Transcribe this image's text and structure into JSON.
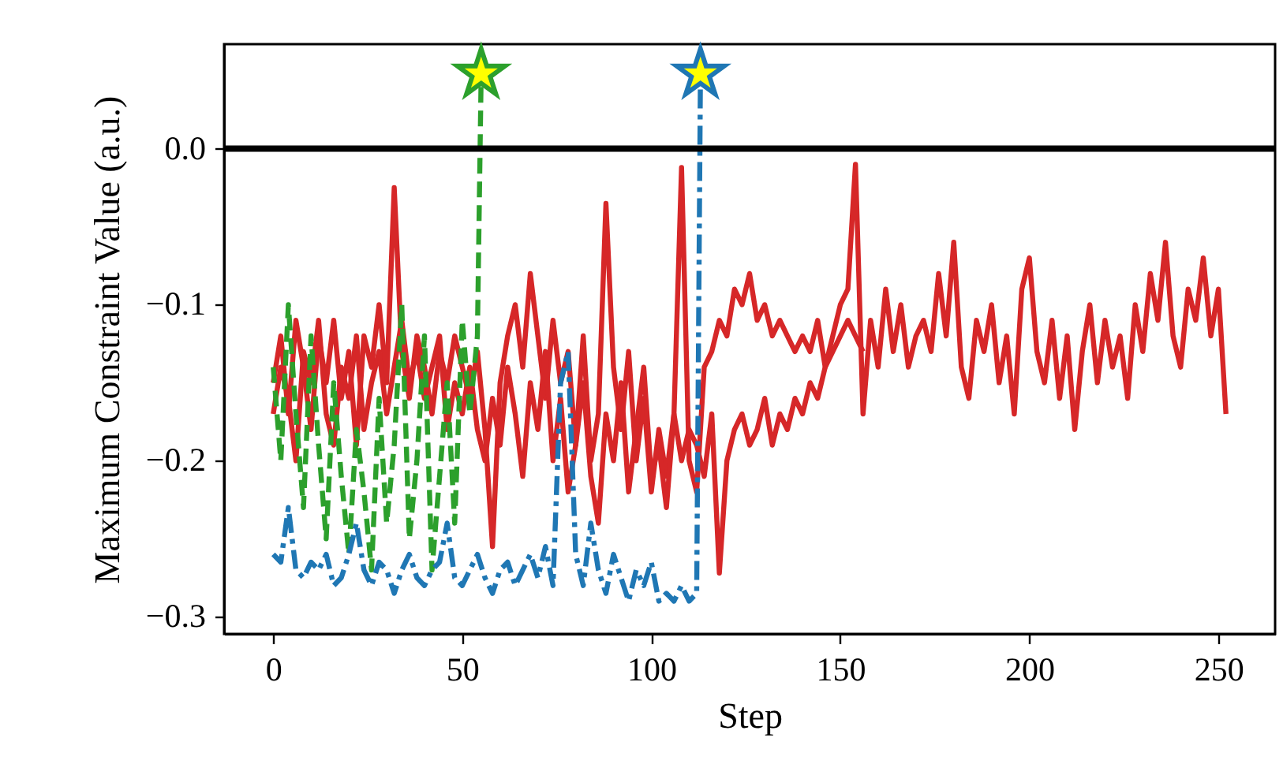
{
  "chart_data": {
    "type": "line",
    "xlabel": "Step",
    "ylabel": "Maximum Constraint Value (a.u.)",
    "xlim": [
      -13,
      265
    ],
    "xticks": [
      0,
      50,
      100,
      150,
      200,
      250
    ],
    "ylim": [
      -0.311,
      0.067
    ],
    "yticks": [
      {
        "value": -0.3,
        "label": "−0.3"
      },
      {
        "value": -0.2,
        "label": "−0.2"
      },
      {
        "value": -0.1,
        "label": "−0.1"
      },
      {
        "value": 0,
        "label": "0.0"
      }
    ],
    "grid": false,
    "ref_lines": [
      {
        "axis": "y",
        "value": 0,
        "color": "#000000"
      }
    ],
    "series": [
      {
        "color": "#d62728",
        "line_style": "solid",
        "x": [
          0,
          2,
          4,
          6,
          8,
          10,
          12,
          14,
          16,
          18,
          20,
          22,
          24,
          26,
          28,
          30,
          32,
          34,
          36,
          38,
          40,
          42,
          44,
          46,
          48,
          50,
          52,
          54,
          56,
          58,
          60,
          62,
          64,
          66,
          68,
          70,
          72,
          74,
          76,
          78,
          80,
          82,
          84,
          86,
          88,
          90,
          92,
          94,
          96,
          98,
          100,
          102,
          104,
          106,
          108,
          110,
          112,
          114,
          116,
          118,
          120,
          122,
          124,
          126,
          128,
          130,
          132,
          134,
          136,
          138,
          140,
          142,
          144,
          146,
          148,
          150,
          152,
          154,
          156,
          158,
          160,
          162,
          164,
          166,
          168,
          170,
          172,
          174,
          176,
          178,
          180,
          182,
          184,
          186,
          188,
          190,
          192,
          194,
          196,
          198,
          200,
          202,
          204,
          206,
          208,
          210,
          212,
          214,
          216,
          218,
          220,
          222,
          224,
          226,
          228,
          230,
          232,
          234,
          236,
          238,
          240,
          242,
          244,
          246,
          248,
          250,
          252
        ],
        "values": [
          -0.15,
          -0.12,
          -0.17,
          -0.11,
          -0.14,
          -0.18,
          -0.12,
          -0.15,
          -0.11,
          -0.16,
          -0.13,
          -0.19,
          -0.12,
          -0.14,
          -0.1,
          -0.15,
          -0.025,
          -0.13,
          -0.16,
          -0.12,
          -0.14,
          -0.17,
          -0.13,
          -0.15,
          -0.12,
          -0.14,
          -0.16,
          -0.13,
          -0.18,
          -0.255,
          -0.15,
          -0.12,
          -0.1,
          -0.14,
          -0.08,
          -0.12,
          -0.16,
          -0.11,
          -0.15,
          -0.13,
          -0.19,
          -0.12,
          -0.2,
          -0.17,
          -0.035,
          -0.14,
          -0.18,
          -0.13,
          -0.2,
          -0.16,
          -0.22,
          -0.18,
          -0.21,
          -0.17,
          -0.012,
          -0.2,
          -0.22,
          -0.14,
          -0.13,
          -0.11,
          -0.12,
          -0.09,
          -0.1,
          -0.08,
          -0.11,
          -0.1,
          -0.12,
          -0.11,
          -0.12,
          -0.13,
          -0.12,
          -0.13,
          -0.11,
          -0.14,
          -0.12,
          -0.1,
          -0.09,
          -0.01,
          -0.17,
          -0.11,
          -0.14,
          -0.09,
          -0.13,
          -0.1,
          -0.14,
          -0.12,
          -0.11,
          -0.13,
          -0.08,
          -0.12,
          -0.06,
          -0.14,
          -0.16,
          -0.11,
          -0.13,
          -0.1,
          -0.15,
          -0.12,
          -0.17,
          -0.09,
          -0.07,
          -0.13,
          -0.15,
          -0.11,
          -0.16,
          -0.12,
          -0.18,
          -0.13,
          -0.1,
          -0.15,
          -0.11,
          -0.14,
          -0.12,
          -0.16,
          -0.1,
          -0.13,
          -0.08,
          -0.11,
          -0.06,
          -0.12,
          -0.14,
          -0.09,
          -0.11,
          -0.07,
          -0.12,
          -0.09,
          -0.17
        ]
      },
      {
        "color": "#d62728",
        "line_style": "solid",
        "x": [
          0,
          2,
          4,
          6,
          8,
          10,
          12,
          14,
          16,
          18,
          20,
          22,
          24,
          26,
          28,
          30,
          32,
          34,
          36,
          38,
          40,
          42,
          44,
          46,
          48,
          50,
          52,
          54,
          56,
          58,
          60,
          62,
          64,
          66,
          68,
          70,
          72,
          74,
          76,
          78,
          80,
          82,
          84,
          86,
          88,
          90,
          92,
          94,
          96,
          98,
          100,
          102,
          104,
          106,
          108,
          110,
          112,
          114,
          116,
          118,
          120,
          122,
          124,
          126,
          128,
          130,
          132,
          134,
          136,
          138,
          140,
          142,
          144,
          146,
          148,
          150,
          152,
          154,
          156
        ],
        "values": [
          -0.17,
          -0.14,
          -0.16,
          -0.2,
          -0.13,
          -0.15,
          -0.11,
          -0.17,
          -0.19,
          -0.14,
          -0.16,
          -0.12,
          -0.18,
          -0.15,
          -0.13,
          -0.17,
          -0.14,
          -0.11,
          -0.15,
          -0.13,
          -0.16,
          -0.14,
          -0.12,
          -0.18,
          -0.15,
          -0.17,
          -0.14,
          -0.18,
          -0.2,
          -0.16,
          -0.19,
          -0.14,
          -0.17,
          -0.21,
          -0.15,
          -0.18,
          -0.13,
          -0.2,
          -0.16,
          -0.22,
          -0.19,
          -0.15,
          -0.21,
          -0.24,
          -0.17,
          -0.2,
          -0.15,
          -0.22,
          -0.18,
          -0.14,
          -0.21,
          -0.19,
          -0.23,
          -0.17,
          -0.2,
          -0.18,
          -0.19,
          -0.21,
          -0.17,
          -0.272,
          -0.2,
          -0.18,
          -0.17,
          -0.19,
          -0.18,
          -0.16,
          -0.19,
          -0.17,
          -0.18,
          -0.16,
          -0.17,
          -0.15,
          -0.16,
          -0.14,
          -0.13,
          -0.12,
          -0.11,
          -0.12,
          -0.13
        ]
      },
      {
        "color": "#2ca02c",
        "line_style": "dashed",
        "x": [
          0,
          2,
          4,
          6,
          8,
          10,
          12,
          14,
          16,
          18,
          20,
          22,
          24,
          26,
          28,
          30,
          32,
          34,
          36,
          38,
          40,
          42,
          44,
          46,
          48,
          50,
          52,
          54,
          55
        ],
        "values": [
          -0.14,
          -0.2,
          -0.1,
          -0.17,
          -0.23,
          -0.12,
          -0.19,
          -0.25,
          -0.15,
          -0.21,
          -0.26,
          -0.18,
          -0.22,
          -0.27,
          -0.16,
          -0.24,
          -0.19,
          -0.1,
          -0.25,
          -0.2,
          -0.12,
          -0.27,
          -0.21,
          -0.15,
          -0.24,
          -0.11,
          -0.17,
          -0.12,
          0.048
        ]
      },
      {
        "color": "#1f77b4",
        "line_style": "dashdot",
        "x": [
          0,
          2,
          4,
          6,
          8,
          10,
          12,
          14,
          16,
          18,
          20,
          22,
          24,
          26,
          28,
          30,
          32,
          34,
          36,
          38,
          40,
          42,
          44,
          46,
          48,
          50,
          52,
          54,
          56,
          58,
          60,
          62,
          64,
          66,
          68,
          70,
          72,
          74,
          76,
          78,
          80,
          82,
          84,
          86,
          88,
          90,
          92,
          94,
          96,
          98,
          100,
          102,
          104,
          106,
          108,
          110,
          112,
          113
        ],
        "values": [
          -0.26,
          -0.265,
          -0.23,
          -0.27,
          -0.275,
          -0.265,
          -0.27,
          -0.26,
          -0.28,
          -0.275,
          -0.26,
          -0.24,
          -0.27,
          -0.28,
          -0.265,
          -0.27,
          -0.285,
          -0.27,
          -0.26,
          -0.275,
          -0.28,
          -0.27,
          -0.265,
          -0.24,
          -0.275,
          -0.28,
          -0.27,
          -0.26,
          -0.275,
          -0.285,
          -0.27,
          -0.265,
          -0.28,
          -0.27,
          -0.26,
          -0.275,
          -0.255,
          -0.28,
          -0.15,
          -0.13,
          -0.26,
          -0.28,
          -0.24,
          -0.27,
          -0.285,
          -0.26,
          -0.275,
          -0.29,
          -0.27,
          -0.28,
          -0.265,
          -0.29,
          -0.285,
          -0.29,
          -0.28,
          -0.29,
          -0.285,
          0.048
        ]
      },
      {
        "type": "scatter",
        "marker": "star",
        "color": "#2ca02c",
        "x": [
          55
        ],
        "values": [
          0.048
        ]
      },
      {
        "type": "scatter",
        "marker": "star",
        "color": "#1f77b4",
        "x": [
          113
        ],
        "values": [
          0.048
        ]
      }
    ]
  }
}
